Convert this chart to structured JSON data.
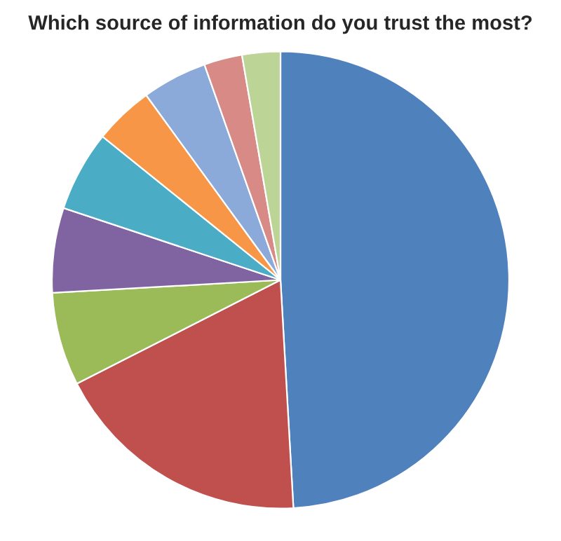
{
  "chart_data": {
    "type": "pie",
    "title": "Which source of information do you trust the most?",
    "categories": [
      null,
      null,
      null,
      null,
      null,
      null,
      null,
      null,
      null
    ],
    "values": [
      49.1,
      18.4,
      6.6,
      6.0,
      5.7,
      4.2,
      4.6,
      2.7,
      2.7
    ],
    "colors": [
      "#4f81bd",
      "#c0504d",
      "#9bbb59",
      "#8064a2",
      "#4bacc6",
      "#f79646",
      "#8ba9d9",
      "#d88a87",
      "#bcd496"
    ]
  }
}
